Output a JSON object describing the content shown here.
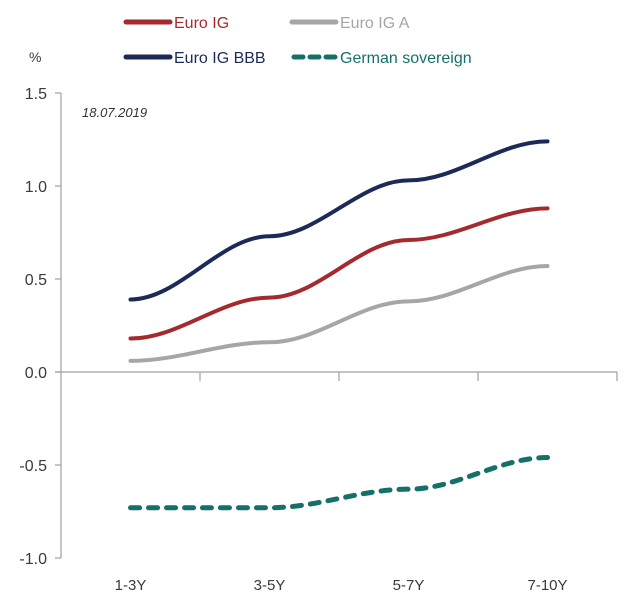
{
  "chart_data": {
    "type": "line",
    "title": "",
    "annotation": "18.07.2019",
    "ylabel": "%",
    "xlabel": "",
    "categories": [
      "1-3Y",
      "3-5Y",
      "5-7Y",
      "7-10Y"
    ],
    "ylim": [
      -1.0,
      1.5
    ],
    "yticks": [
      1.5,
      1.0,
      0.5,
      0.0,
      -0.5,
      -1.0
    ],
    "ytick_labels": [
      "1.5",
      "1.0",
      "0.5",
      "0.0",
      "-0.5",
      "-1.0"
    ],
    "grid": false,
    "legend_position": "top",
    "series": [
      {
        "name": "Euro IG",
        "color": "#a32a2e",
        "dash": false,
        "values": [
          0.18,
          0.4,
          0.71,
          0.88
        ]
      },
      {
        "name": "Euro IG A",
        "color": "#a6a6a8",
        "dash": false,
        "values": [
          0.06,
          0.16,
          0.38,
          0.57
        ]
      },
      {
        "name": "Euro IG BBB",
        "color": "#1c2a57",
        "dash": false,
        "values": [
          0.39,
          0.73,
          1.03,
          1.24
        ]
      },
      {
        "name": "German sovereign",
        "color": "#16706a",
        "dash": true,
        "values": [
          -0.73,
          -0.73,
          -0.63,
          -0.46
        ]
      }
    ]
  }
}
